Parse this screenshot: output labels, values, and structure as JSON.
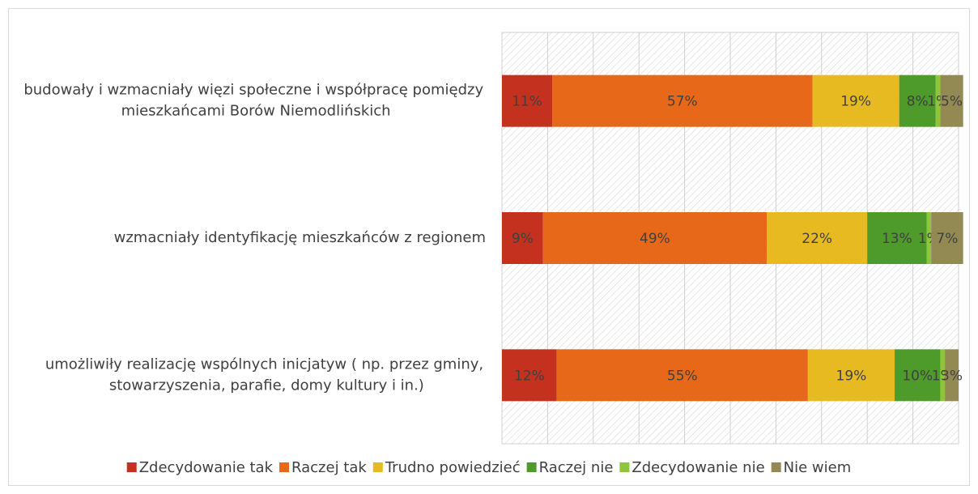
{
  "chart_data": {
    "type": "bar",
    "orientation": "horizontal",
    "stacked": true,
    "categories": [
      "budowały i wzmacniały więzi społeczne i współpracę pomiędzy mieszkańcami Borów Niemodlińskich",
      "wzmacniały identyfikację mieszkańców z regionem",
      "umożliwiły realizację wspólnych inicjatyw ( np. przez gminy, stowarzyszenia, parafie, domy kultury i in.)"
    ],
    "series": [
      {
        "name": "Zdecydowanie tak",
        "color": "#c5311f",
        "values": [
          11,
          9,
          12
        ],
        "value_labels": [
          "11%",
          "9%",
          "12%"
        ]
      },
      {
        "name": "Raczej tak",
        "color": "#e8681a",
        "values": [
          57,
          49,
          55
        ],
        "value_labels": [
          "57%",
          "49%",
          "55%"
        ]
      },
      {
        "name": "Trudno powiedzieć",
        "color": "#e8ba22",
        "values": [
          19,
          22,
          19
        ],
        "value_labels": [
          "19%",
          "22%",
          "19%"
        ]
      },
      {
        "name": "Raczej nie",
        "color": "#4e9a2a",
        "values": [
          8,
          13,
          10
        ],
        "value_labels": [
          "8%",
          "13%",
          "10%"
        ]
      },
      {
        "name": "Zdecydowanie nie",
        "color": "#8fc53a",
        "values": [
          1,
          1,
          1
        ],
        "value_labels": [
          "1%",
          "1%",
          "1%"
        ]
      },
      {
        "name": "Nie wiem",
        "color": "#938953",
        "values": [
          5,
          7,
          3
        ],
        "value_labels": [
          "5%",
          "7%",
          "3%"
        ]
      }
    ],
    "xlim": [
      0,
      100
    ],
    "xticks": [
      0,
      10,
      20,
      30,
      40,
      50,
      60,
      70,
      80,
      90,
      100
    ],
    "grid": true,
    "legend": "bottom"
  }
}
